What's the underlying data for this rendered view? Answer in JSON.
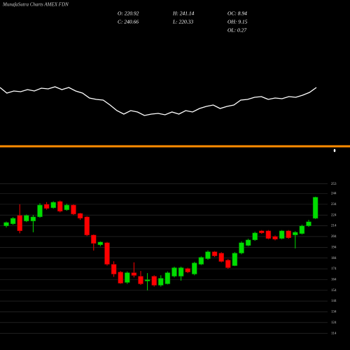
{
  "header": {
    "title": "MunafaSutra Charts AMEX  FDN"
  },
  "stats": [
    "O: 220.92",
    "H: 241.14",
    "OC: 8.94",
    "C: 240.66",
    "L: 220.33",
    "OH: 9.15",
    "OL: 0.27"
  ],
  "indicator": {
    "color": "#ffffff",
    "values": [
      75,
      67,
      70,
      69,
      72,
      70,
      74,
      73,
      76,
      72,
      75,
      70,
      67,
      60,
      58,
      57,
      50,
      42,
      37,
      42,
      40,
      35,
      37,
      38,
      36,
      40,
      37,
      42,
      40,
      45,
      48,
      50,
      45,
      48,
      50,
      57,
      58,
      61,
      62,
      58,
      60,
      59,
      62,
      61,
      64,
      68,
      75
    ]
  },
  "chart_data": {
    "type": "candlestick",
    "up_color": "#00dd00",
    "down_color": "#ff0000",
    "open": [
      213.9,
      215.8,
      223.6,
      218.4,
      218.4,
      222.3,
      234.0,
      230.7,
      236.6,
      228.8,
      233.3,
      225.5,
      222.3,
      205.4,
      196.3,
      198.3,
      178.2,
      171.0,
      161.3,
      170.4,
      167.1,
      162.6,
      167.1,
      158.7,
      160.0,
      167.1,
      167.1,
      174.3,
      169.1,
      178.2,
      183.4,
      189.9,
      188.6,
      182.1,
      176.9,
      188.6,
      195.7,
      200.9,
      209.3,
      209.3,
      204.1,
      202.2,
      209.3,
      205.4,
      206.7,
      213.9,
      220.92
    ],
    "high": [
      218.0,
      222.0,
      234.0,
      224.5,
      224.0,
      235.0,
      236.0,
      236.8,
      237.5,
      234.5,
      234.0,
      226.0,
      223.0,
      206.0,
      199.5,
      199.0,
      181.0,
      172.0,
      171.5,
      180.0,
      172.0,
      170.0,
      168.0,
      168.0,
      171.5,
      176.0,
      176.0,
      175.0,
      180.5,
      185.5,
      191.0,
      190.5,
      189.5,
      183.0,
      189.5,
      199.5,
      202.0,
      208.5,
      210.0,
      210.0,
      205.0,
      210.0,
      210.0,
      209.0,
      215.0,
      219.5,
      241.14
    ],
    "low": [
      212.5,
      215.0,
      207.0,
      217.5,
      208.0,
      221.5,
      229.0,
      230.0,
      226.5,
      228.0,
      224.0,
      219.5,
      204.5,
      191.0,
      195.0,
      177.0,
      166.5,
      160.0,
      160.0,
      166.0,
      159.0,
      154.0,
      157.5,
      157.5,
      159.5,
      166.0,
      163.0,
      170.0,
      168.0,
      177.5,
      182.5,
      185.0,
      180.0,
      174.0,
      176.5,
      187.5,
      195.0,
      200.0,
      206.5,
      201.5,
      200.5,
      201.5,
      202.0,
      193.0,
      206.0,
      213.0,
      220.33
    ],
    "close": [
      217.1,
      221.0,
      209.3,
      223.6,
      222.3,
      233.3,
      230.1,
      235.9,
      227.5,
      233.3,
      224.9,
      221.0,
      205.4,
      197.6,
      198.9,
      178.2,
      169.1,
      160.6,
      170.4,
      167.8,
      160.0,
      163.9,
      158.7,
      165.2,
      170.4,
      175.0,
      175.0,
      171.0,
      179.5,
      184.7,
      189.9,
      186.0,
      180.8,
      175.0,
      188.6,
      198.3,
      200.9,
      207.4,
      207.4,
      202.2,
      201.5,
      209.3,
      202.8,
      208.0,
      213.9,
      217.8,
      240.66
    ],
    "ylim": [
      105,
      258
    ],
    "yticks": [
      253,
      244,
      234,
      224,
      214,
      204,
      194,
      184,
      174,
      164,
      154,
      144,
      134,
      124,
      114
    ],
    "grid": true
  }
}
